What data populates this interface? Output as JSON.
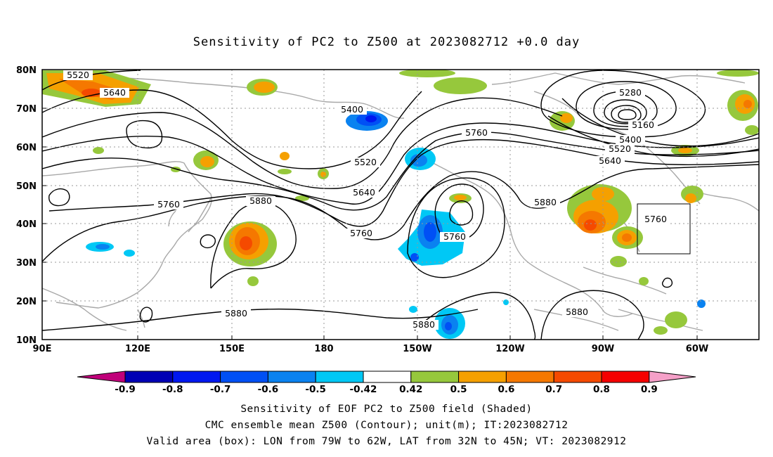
{
  "title": "Sensitivity of PC2 to Z500 at 2023082712 +0.0 day",
  "lat_labels": [
    "80N",
    "70N",
    "60N",
    "50N",
    "40N",
    "30N",
    "20N",
    "10N"
  ],
  "lon_labels": [
    "90E",
    "120E",
    "150E",
    "180",
    "150W",
    "120W",
    "90W",
    "60W"
  ],
  "contour_labels": {
    "c5520a": "5520",
    "c5640a": "5640",
    "c5400a": "5400",
    "c5760a": "5760",
    "c5880a": "5880",
    "c5520b": "5520",
    "c5640b": "5640",
    "c5760b": "5760",
    "c5760c": "5760",
    "c5880b": "5880",
    "c5880c": "5880",
    "c5760d": "5760",
    "c5880d": "5880",
    "c5280": "5280",
    "c5160": "5160",
    "c5400b": "5400",
    "c5520c": "5520",
    "c5640c": "5640",
    "c5880e": "5880",
    "c5760e": "5760"
  },
  "colorbar": {
    "labels": [
      "-0.9",
      "-0.8",
      "-0.7",
      "-0.6",
      "-0.5",
      "-0.42",
      "0.42",
      "0.5",
      "0.6",
      "0.7",
      "0.8",
      "0.9"
    ],
    "colors": [
      "#c0007a",
      "#0000b4",
      "#0018f0",
      "#0050f5",
      "#0a82f0",
      "#00c8f5",
      "#ffffff",
      "#96c83c",
      "#f5a000",
      "#f57800",
      "#f54a00",
      "#f50000",
      "#f5a0c8"
    ]
  },
  "captions": {
    "line1": "Sensitivity of EOF PC2 to Z500 field (Shaded)",
    "line2": "CMC ensemble mean Z500 (Contour); unit(m); IT:2023082712",
    "line3": "Valid area (box): LON from 79W to 62W, LAT from 32N to 45N; VT: 2023082912"
  }
}
